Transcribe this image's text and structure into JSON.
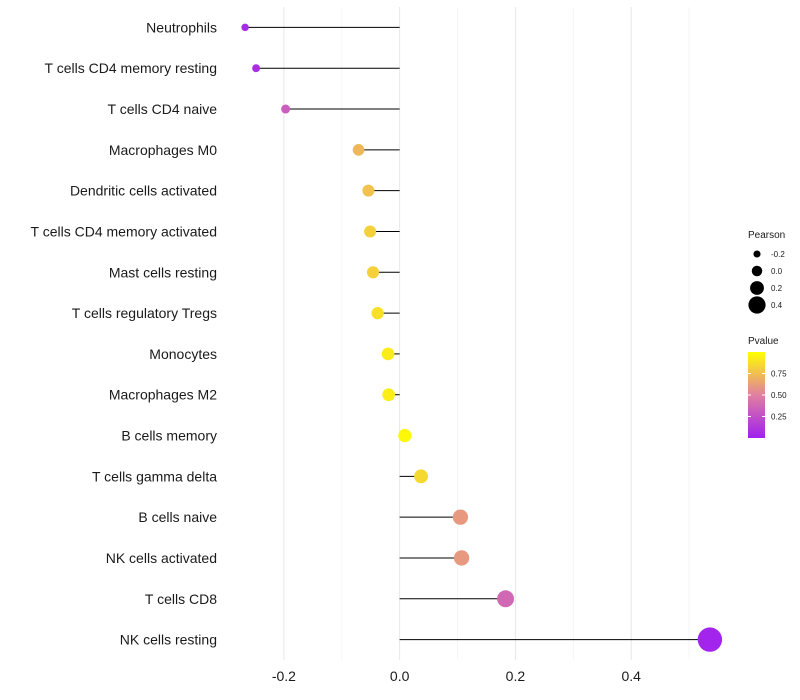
{
  "chart_data": {
    "type": "lollipop",
    "title": "",
    "xlabel": "",
    "ylabel": "",
    "xlim": [
      -0.3,
      0.55
    ],
    "x_ticks": [
      -0.2,
      0.0,
      0.2,
      0.4
    ],
    "x_tick_labels": [
      "-0.2",
      "0.0",
      "0.2",
      "0.4"
    ],
    "baseline": 0.0,
    "grid": true,
    "categories": [
      "Neutrophils",
      "T cells CD4 memory resting",
      "T cells CD4 naive",
      "Macrophages M0",
      "Dendritic cells activated",
      "T cells CD4 memory activated",
      "Mast cells resting",
      "T cells regulatory  Tregs",
      "Monocytes",
      "Macrophages M2",
      "B cells memory",
      "T cells gamma delta",
      "B cells naive",
      "NK cells activated",
      "T cells CD8",
      "NK cells resting"
    ],
    "pearson": [
      -0.267,
      -0.248,
      -0.197,
      -0.071,
      -0.054,
      -0.051,
      -0.046,
      -0.038,
      -0.02,
      -0.019,
      0.009,
      0.037,
      0.105,
      0.107,
      0.183,
      0.536
    ],
    "pvalue": [
      0.05,
      0.08,
      0.32,
      0.72,
      0.76,
      0.82,
      0.82,
      0.88,
      0.92,
      0.93,
      0.97,
      0.85,
      0.6,
      0.6,
      0.38,
      0.02
    ],
    "legend": {
      "size": {
        "title": "Pearson",
        "breaks": [
          -0.2,
          0.0,
          0.2,
          0.4
        ],
        "labels": [
          "-0.2",
          "0.0",
          "0.2",
          "0.4"
        ]
      },
      "color": {
        "title": "Pvalue",
        "breaks": [
          0.25,
          0.5,
          0.75
        ],
        "labels": [
          "0.25",
          "0.50",
          "0.75"
        ],
        "low": "#a020f0",
        "high": "#ffff00",
        "range": [
          0.0,
          1.0
        ]
      }
    }
  }
}
